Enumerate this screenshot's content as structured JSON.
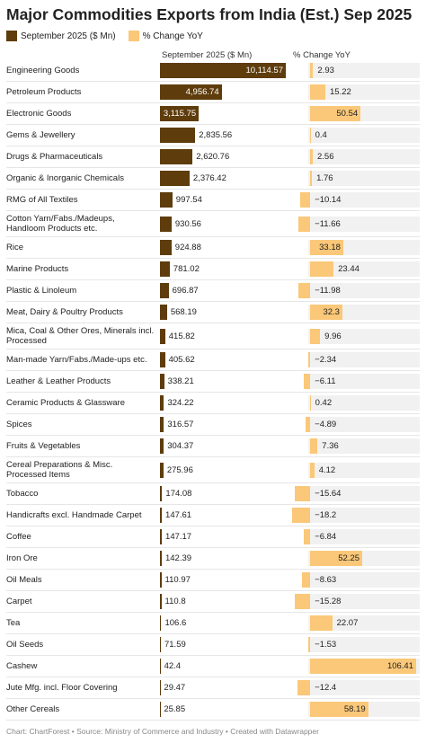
{
  "chart_data": {
    "type": "bar",
    "title": "Major Commodities Exports from India (Est.) Sep 2025",
    "categories": [
      "Engineering Goods",
      "Petroleum Products",
      "Electronic Goods",
      "Gems & Jewellery",
      "Drugs & Pharmaceuticals",
      "Organic & Inorganic Chemicals",
      "RMG of All Textiles",
      "Cotton Yarn/Fabs./Madeups, Handloom Products etc.",
      "Rice",
      "Marine Products",
      "Plastic & Linoleum",
      "Meat, Dairy & Poultry Products",
      "Mica, Coal & Other Ores, Minerals incl. Processed",
      "Man-made Yarn/Fabs./Made-ups etc.",
      "Leather & Leather Products",
      "Ceramic Products & Glassware",
      "Spices",
      "Fruits & Vegetables",
      "Cereal Preparations & Misc. Processed Items",
      "Tobacco",
      "Handicrafts excl. Handmade Carpet",
      "Coffee",
      "Iron Ore",
      "Oil Meals",
      "Carpet",
      "Tea",
      "Oil Seeds",
      "Cashew",
      "Jute Mfg. incl. Floor Covering",
      "Other Cereals"
    ],
    "series": [
      {
        "name": "September 2025 ($ Mn)",
        "color": "#5e3c0c",
        "values": [
          10114.57,
          4956.74,
          3115.75,
          2835.56,
          2620.76,
          2376.42,
          997.54,
          930.56,
          924.88,
          781.02,
          696.87,
          568.19,
          415.82,
          405.62,
          338.21,
          324.22,
          316.57,
          304.37,
          275.96,
          174.08,
          147.61,
          147.17,
          142.39,
          110.97,
          110.8,
          106.6,
          71.59,
          42.4,
          29.47,
          25.85
        ],
        "value_labels": [
          "10,114.57",
          "4,956.74",
          "3,115.75",
          "2,835.56",
          "2,620.76",
          "2,376.42",
          "997.54",
          "930.56",
          "924.88",
          "781.02",
          "696.87",
          "568.19",
          "415.82",
          "405.62",
          "338.21",
          "324.22",
          "316.57",
          "304.37",
          "275.96",
          "174.08",
          "147.61",
          "147.17",
          "142.39",
          "110.97",
          "110.8",
          "106.6",
          "71.59",
          "42.4",
          "29.47",
          "25.85"
        ]
      },
      {
        "name": "% Change YoY",
        "color": "#fac878",
        "values": [
          2.93,
          15.22,
          50.54,
          0.4,
          2.56,
          1.76,
          -10.14,
          -11.66,
          33.18,
          23.44,
          -11.98,
          32.3,
          9.96,
          -2.34,
          -6.11,
          0.42,
          -4.89,
          7.36,
          4.12,
          -15.64,
          -18.2,
          -6.84,
          52.25,
          -8.63,
          -15.28,
          22.07,
          -1.53,
          106.41,
          -12.4,
          58.19
        ],
        "value_labels": [
          "2.93",
          "15.22",
          "50.54",
          "0.4",
          "2.56",
          "1.76",
          "−10.14",
          "−11.66",
          "33.18",
          "23.44",
          "−11.98",
          "32.3",
          "9.96",
          "−2.34",
          "−6.11",
          "0.42",
          "−4.89",
          "7.36",
          "4.12",
          "−15.64",
          "−18.2",
          "−6.84",
          "52.25",
          "−8.63",
          "−15.28",
          "22.07",
          "−1.53",
          "106.41",
          "−12.4",
          "58.19"
        ]
      }
    ],
    "footer": "Chart: ChartForest • Source: Ministry of Commerce and Industry • Created with Datawrapper"
  }
}
